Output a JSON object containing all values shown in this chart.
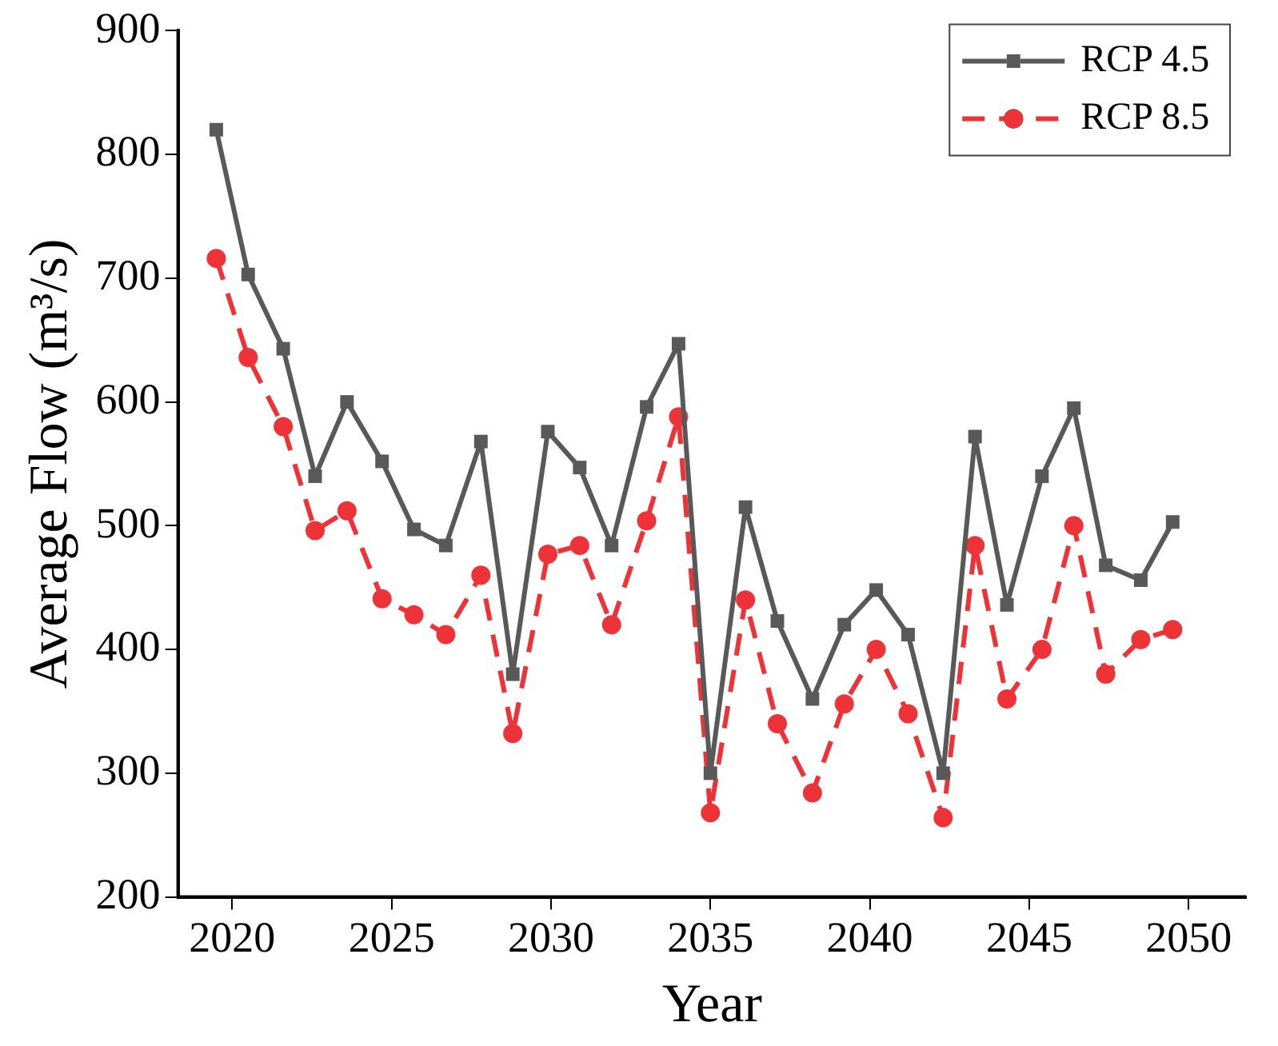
{
  "chart_data": {
    "type": "line",
    "xlabel": "Year",
    "ylabel": "Average Flow (m³/s)",
    "x": [
      2019.5,
      2020.5,
      2021.6,
      2022.6,
      2023.6,
      2024.7,
      2025.7,
      2026.7,
      2027.8,
      2028.8,
      2029.9,
      2030.9,
      2031.9,
      2033.0,
      2034.0,
      2035.0,
      2036.1,
      2037.1,
      2038.2,
      2039.2,
      2040.2,
      2041.2,
      2042.3,
      2043.3,
      2044.3,
      2045.4,
      2046.4,
      2047.4,
      2048.5,
      2049.5
    ],
    "series": [
      {
        "name": "RCP 4.5",
        "color": "#595959",
        "marker": "square",
        "line_style": "solid",
        "values": [
          820,
          703,
          643,
          540,
          600,
          552,
          497,
          484,
          568,
          380,
          576,
          547,
          484,
          596,
          647,
          300,
          515,
          423,
          360,
          420,
          448,
          412,
          300,
          572,
          436,
          540,
          595,
          468,
          456,
          503
        ]
      },
      {
        "name": "RCP 8.5",
        "color": "#ee3338",
        "marker": "circle",
        "line_style": "dashed",
        "values": [
          716,
          636,
          580,
          496,
          512,
          441,
          428,
          412,
          460,
          332,
          477,
          484,
          420,
          504,
          588,
          268,
          440,
          340,
          284,
          356,
          400,
          348,
          264,
          484,
          360,
          400,
          500,
          380,
          408,
          416
        ]
      }
    ],
    "xlim": [
      2018.3,
      2051.8
    ],
    "xticks": [
      2020,
      2025,
      2030,
      2035,
      2040,
      2045,
      2050
    ],
    "ylim": [
      200,
      900
    ],
    "yticks": [
      200,
      300,
      400,
      500,
      600,
      700,
      800,
      900
    ],
    "grid": false,
    "legend": "top right"
  }
}
